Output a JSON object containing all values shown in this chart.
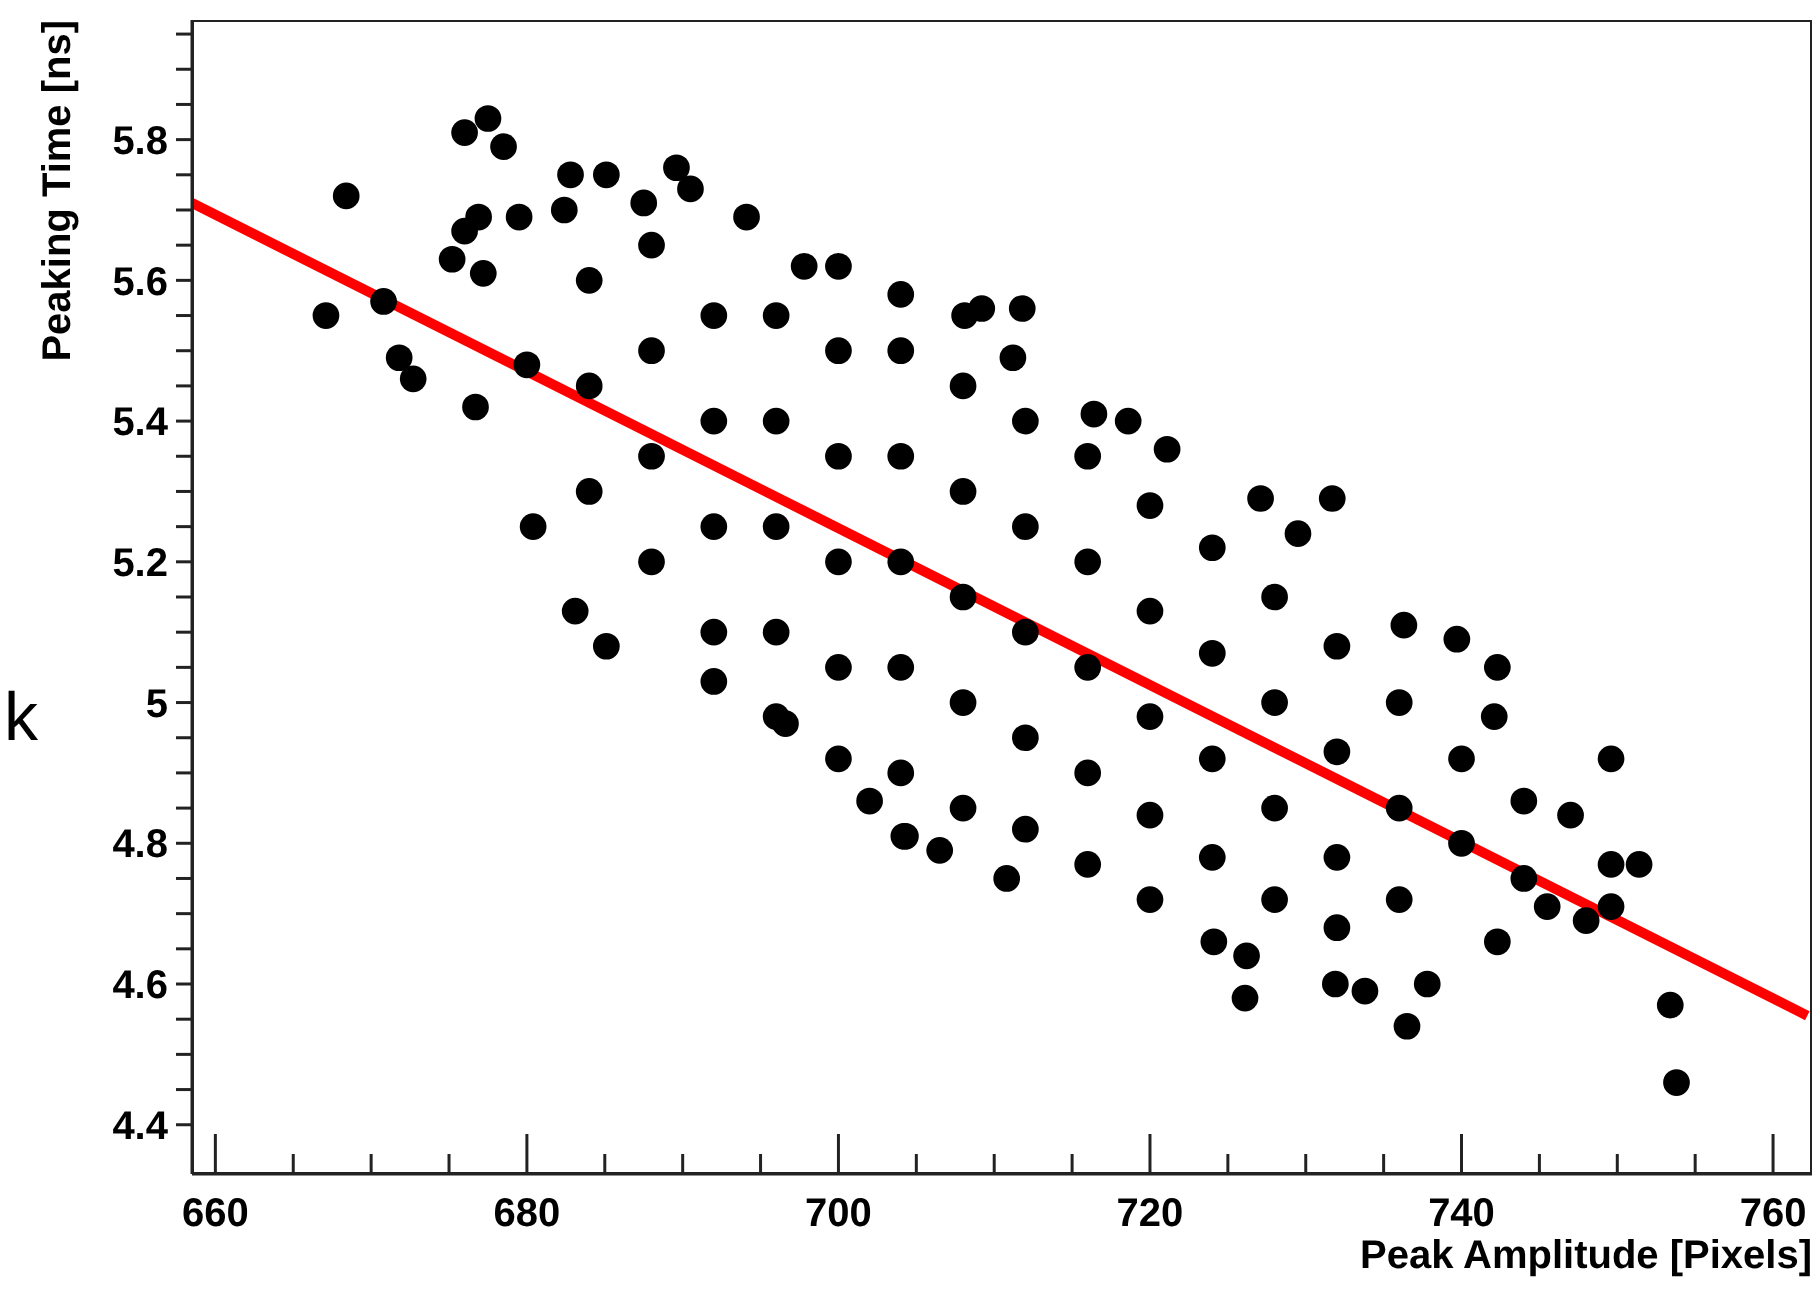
{
  "chart_data": {
    "type": "scatter",
    "xlabel": "Peak Amplitude [Pixels]",
    "ylabel": "Peaking Time [ns]",
    "annotations": [
      "k"
    ],
    "xlim": [
      658.5,
      762.5
    ],
    "ylim": [
      4.33,
      5.97
    ],
    "xticks": [
      660,
      {
        "value": 665,
        "label": null
      },
      {
        "value": 670,
        "label": null
      },
      {
        "value": 675,
        "label": null
      },
      680,
      {
        "value": 685,
        "label": null
      },
      {
        "value": 690,
        "label": null
      },
      {
        "value": 695,
        "label": null
      },
      700,
      {
        "value": 705,
        "label": null
      },
      {
        "value": 710,
        "label": null
      },
      {
        "value": 715,
        "label": null
      },
      720,
      {
        "value": 725,
        "label": null
      },
      {
        "value": 730,
        "label": null
      },
      {
        "value": 735,
        "label": null
      },
      740,
      {
        "value": 745,
        "label": null
      },
      {
        "value": 750,
        "label": null
      },
      {
        "value": 755,
        "label": null
      },
      760
    ],
    "yticks": [
      4.4,
      {
        "value": 4.45,
        "label": null
      },
      {
        "value": 4.5,
        "label": null
      },
      {
        "value": 4.55,
        "label": null
      },
      4.6,
      {
        "value": 4.65,
        "label": null
      },
      {
        "value": 4.7,
        "label": null
      },
      {
        "value": 4.75,
        "label": null
      },
      4.8,
      {
        "value": 4.85,
        "label": null
      },
      {
        "value": 4.9,
        "label": null
      },
      {
        "value": 4.95,
        "label": null
      },
      5,
      {
        "value": 5.05,
        "label": null
      },
      {
        "value": 5.1,
        "label": null
      },
      {
        "value": 5.15,
        "label": null
      },
      5.2,
      {
        "value": 5.25,
        "label": null
      },
      {
        "value": 5.3,
        "label": null
      },
      {
        "value": 5.35,
        "label": null
      },
      5.4,
      {
        "value": 5.45,
        "label": null
      },
      {
        "value": 5.5,
        "label": null
      },
      {
        "value": 5.55,
        "label": null
      },
      5.6,
      {
        "value": 5.65,
        "label": null
      },
      {
        "value": 5.7,
        "label": null
      },
      {
        "value": 5.75,
        "label": null
      },
      5.8,
      {
        "value": 5.85,
        "label": null
      },
      {
        "value": 5.9,
        "label": null
      },
      {
        "value": 5.95,
        "label": null
      }
    ],
    "grid": false,
    "legend": false,
    "marker": "circle",
    "series": [
      {
        "type": "scatter",
        "color": "#000000",
        "x": [
          667.1,
          668.4,
          676.0,
          677.5,
          678.5,
          670.8,
          671.8,
          672.7,
          676.7,
          675.2,
          676.0,
          676.9,
          677.2,
          682.8,
          685.1,
          689.6,
          690.5,
          694.1,
          697.8,
          680.4,
          683.1,
          685.1,
          679.5,
          682.4,
          687.5,
          708.1,
          709.2,
          711.8,
          711.2,
          716.4,
          718.6,
          721.1,
          727.1,
          731.7,
          729.5,
          736.3,
          739.7,
          742.3,
          742.1,
          749.6,
          747.0,
          749.6,
          751.4,
          749.6,
          748.0,
          745.5,
          753.4,
          753.8,
          742.3,
          737.8,
          736.5,
          733.8,
          731.9,
          726.1,
          724.1,
          726.2,
          706.5,
          710.8,
          704.3,
          702.0,
          704.2,
          696.6,
          692.0,
          688,
          688,
          688,
          692,
          692,
          692,
          692,
          696,
          696,
          696,
          696,
          696,
          700,
          700,
          700,
          700,
          700,
          704,
          704,
          704,
          704,
          704,
          708,
          708,
          708,
          708,
          708,
          712,
          712,
          712,
          712,
          712,
          716,
          716,
          716,
          716,
          716,
          720,
          720,
          720,
          720,
          720,
          724,
          724,
          724,
          724,
          728,
          728,
          728,
          728,
          732,
          732,
          732,
          732,
          736,
          736,
          736,
          740,
          740,
          744,
          744,
          684,
          684,
          680,
          684,
          688,
          700,
          704
        ],
        "values": [
          5.55,
          5.72,
          5.81,
          5.83,
          5.79,
          5.57,
          5.49,
          5.46,
          5.42,
          5.63,
          5.67,
          5.69,
          5.61,
          5.75,
          5.75,
          5.76,
          5.73,
          5.69,
          5.62,
          5.25,
          5.13,
          5.08,
          5.69,
          5.7,
          5.71,
          5.55,
          5.56,
          5.56,
          5.49,
          5.41,
          5.4,
          5.36,
          5.29,
          5.29,
          5.24,
          5.11,
          5.09,
          5.05,
          4.98,
          4.92,
          4.84,
          4.77,
          4.77,
          4.71,
          4.69,
          4.71,
          4.57,
          4.46,
          4.66,
          4.6,
          4.54,
          4.59,
          4.6,
          4.58,
          4.66,
          4.64,
          4.79,
          4.75,
          4.81,
          4.86,
          4.81,
          4.97,
          5.03,
          5.5,
          5.35,
          5.2,
          5.55,
          5.4,
          5.25,
          5.1,
          5.55,
          5.4,
          5.25,
          5.1,
          4.98,
          5.5,
          5.35,
          5.2,
          5.05,
          4.92,
          5.5,
          5.35,
          5.2,
          5.05,
          4.9,
          5.45,
          5.3,
          5.15,
          5.0,
          4.85,
          5.4,
          5.25,
          5.1,
          4.95,
          4.82,
          5.35,
          5.2,
          5.05,
          4.9,
          4.77,
          5.28,
          5.13,
          4.98,
          4.84,
          4.72,
          5.22,
          5.07,
          4.92,
          4.78,
          5.15,
          5.0,
          4.85,
          4.72,
          5.08,
          4.93,
          4.78,
          4.68,
          5.0,
          4.85,
          4.72,
          4.92,
          4.8,
          4.86,
          4.75,
          5.45,
          5.3,
          5.48,
          5.6,
          5.65,
          5.62,
          5.58
        ]
      },
      {
        "type": "line",
        "color": "#ff0000",
        "marker": "none",
        "line_style": "solid",
        "x": [
          658.5,
          762.2
        ],
        "values": [
          5.71,
          4.555
        ]
      }
    ]
  }
}
